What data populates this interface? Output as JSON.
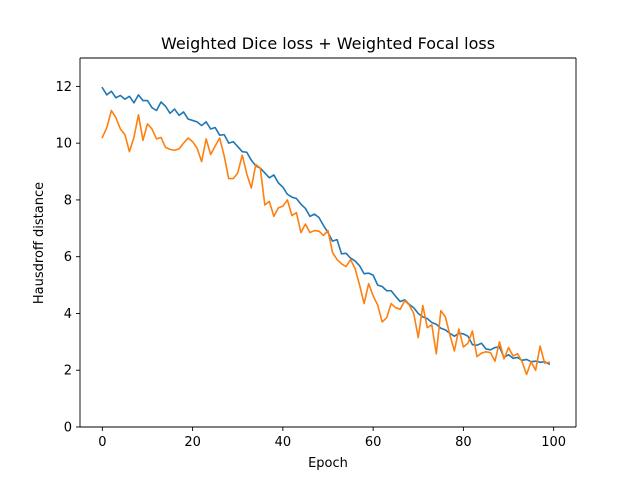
{
  "chart_data": {
    "type": "line",
    "title": "Weighted Dice loss + Weighted Focal loss",
    "xlabel": "Epoch",
    "ylabel": "Hausdroff distance",
    "xlim": [
      -4.95,
      104.95
    ],
    "ylim": [
      0,
      13
    ],
    "xticks": [
      0,
      20,
      40,
      60,
      80,
      100
    ],
    "yticks": [
      0,
      2,
      4,
      6,
      8,
      10,
      12
    ],
    "grid": false,
    "legend": "none",
    "x": [
      0,
      1,
      2,
      3,
      4,
      5,
      6,
      7,
      8,
      9,
      10,
      11,
      12,
      13,
      14,
      15,
      16,
      17,
      18,
      19,
      20,
      21,
      22,
      23,
      24,
      25,
      26,
      27,
      28,
      29,
      30,
      31,
      32,
      33,
      34,
      35,
      36,
      37,
      38,
      39,
      40,
      41,
      42,
      43,
      44,
      45,
      46,
      47,
      48,
      49,
      50,
      51,
      52,
      53,
      54,
      55,
      56,
      57,
      58,
      59,
      60,
      61,
      62,
      63,
      64,
      65,
      66,
      67,
      68,
      69,
      70,
      71,
      72,
      73,
      74,
      75,
      76,
      77,
      78,
      79,
      80,
      81,
      82,
      83,
      84,
      85,
      86,
      87,
      88,
      89,
      90,
      91,
      92,
      93,
      94,
      95,
      96,
      97,
      98,
      99
    ],
    "series": [
      {
        "color": "#1f77b4",
        "values": [
          11.95,
          11.7,
          11.83,
          11.6,
          11.68,
          11.55,
          11.65,
          11.42,
          11.7,
          11.5,
          11.5,
          11.25,
          11.15,
          11.45,
          11.3,
          11.05,
          11.2,
          10.98,
          11.1,
          10.85,
          10.8,
          10.75,
          10.62,
          10.75,
          10.5,
          10.55,
          10.28,
          10.3,
          10.0,
          10.05,
          9.88,
          9.7,
          9.68,
          9.4,
          9.2,
          9.12,
          8.95,
          8.78,
          8.88,
          8.6,
          8.45,
          8.2,
          8.1,
          8.05,
          7.85,
          7.7,
          7.42,
          7.5,
          7.38,
          7.1,
          6.85,
          6.55,
          6.6,
          6.1,
          6.12,
          5.95,
          5.85,
          5.68,
          5.4,
          5.42,
          5.35,
          5.0,
          4.95,
          4.8,
          4.8,
          4.6,
          4.42,
          4.48,
          4.32,
          4.2,
          4.0,
          3.88,
          3.82,
          3.68,
          3.62,
          3.48,
          3.42,
          3.3,
          3.2,
          3.3,
          3.28,
          3.2,
          2.9,
          2.88,
          2.95,
          2.75,
          2.72,
          2.8,
          2.82,
          2.45,
          2.55,
          2.42,
          2.45,
          2.35,
          2.38,
          2.3,
          2.32,
          2.28,
          2.3,
          2.22
        ]
      },
      {
        "color": "#ff7f0e",
        "values": [
          10.2,
          10.55,
          11.15,
          10.9,
          10.5,
          10.3,
          9.7,
          10.2,
          11.0,
          10.1,
          10.68,
          10.5,
          10.15,
          10.2,
          9.85,
          9.78,
          9.75,
          9.8,
          10.0,
          10.18,
          10.05,
          9.82,
          9.35,
          10.15,
          9.6,
          9.9,
          10.18,
          9.55,
          8.75,
          8.75,
          8.95,
          9.58,
          8.92,
          8.42,
          9.25,
          9.12,
          7.82,
          7.95,
          7.42,
          7.72,
          7.78,
          8.0,
          7.45,
          7.55,
          6.85,
          7.15,
          6.85,
          6.92,
          6.9,
          6.75,
          6.92,
          6.15,
          5.9,
          5.75,
          5.65,
          5.9,
          5.58,
          5.0,
          4.35,
          5.05,
          4.62,
          4.3,
          3.7,
          3.85,
          4.35,
          4.2,
          4.15,
          4.45,
          4.3,
          4.0,
          3.15,
          4.28,
          3.5,
          3.6,
          2.58,
          4.1,
          3.88,
          3.25,
          2.68,
          3.45,
          2.82,
          2.95,
          3.38,
          2.48,
          2.6,
          2.65,
          2.62,
          2.32,
          3.0,
          2.4,
          2.8,
          2.5,
          2.58,
          2.3,
          1.85,
          2.3,
          2.0,
          2.85,
          2.25,
          2.28
        ]
      }
    ]
  }
}
